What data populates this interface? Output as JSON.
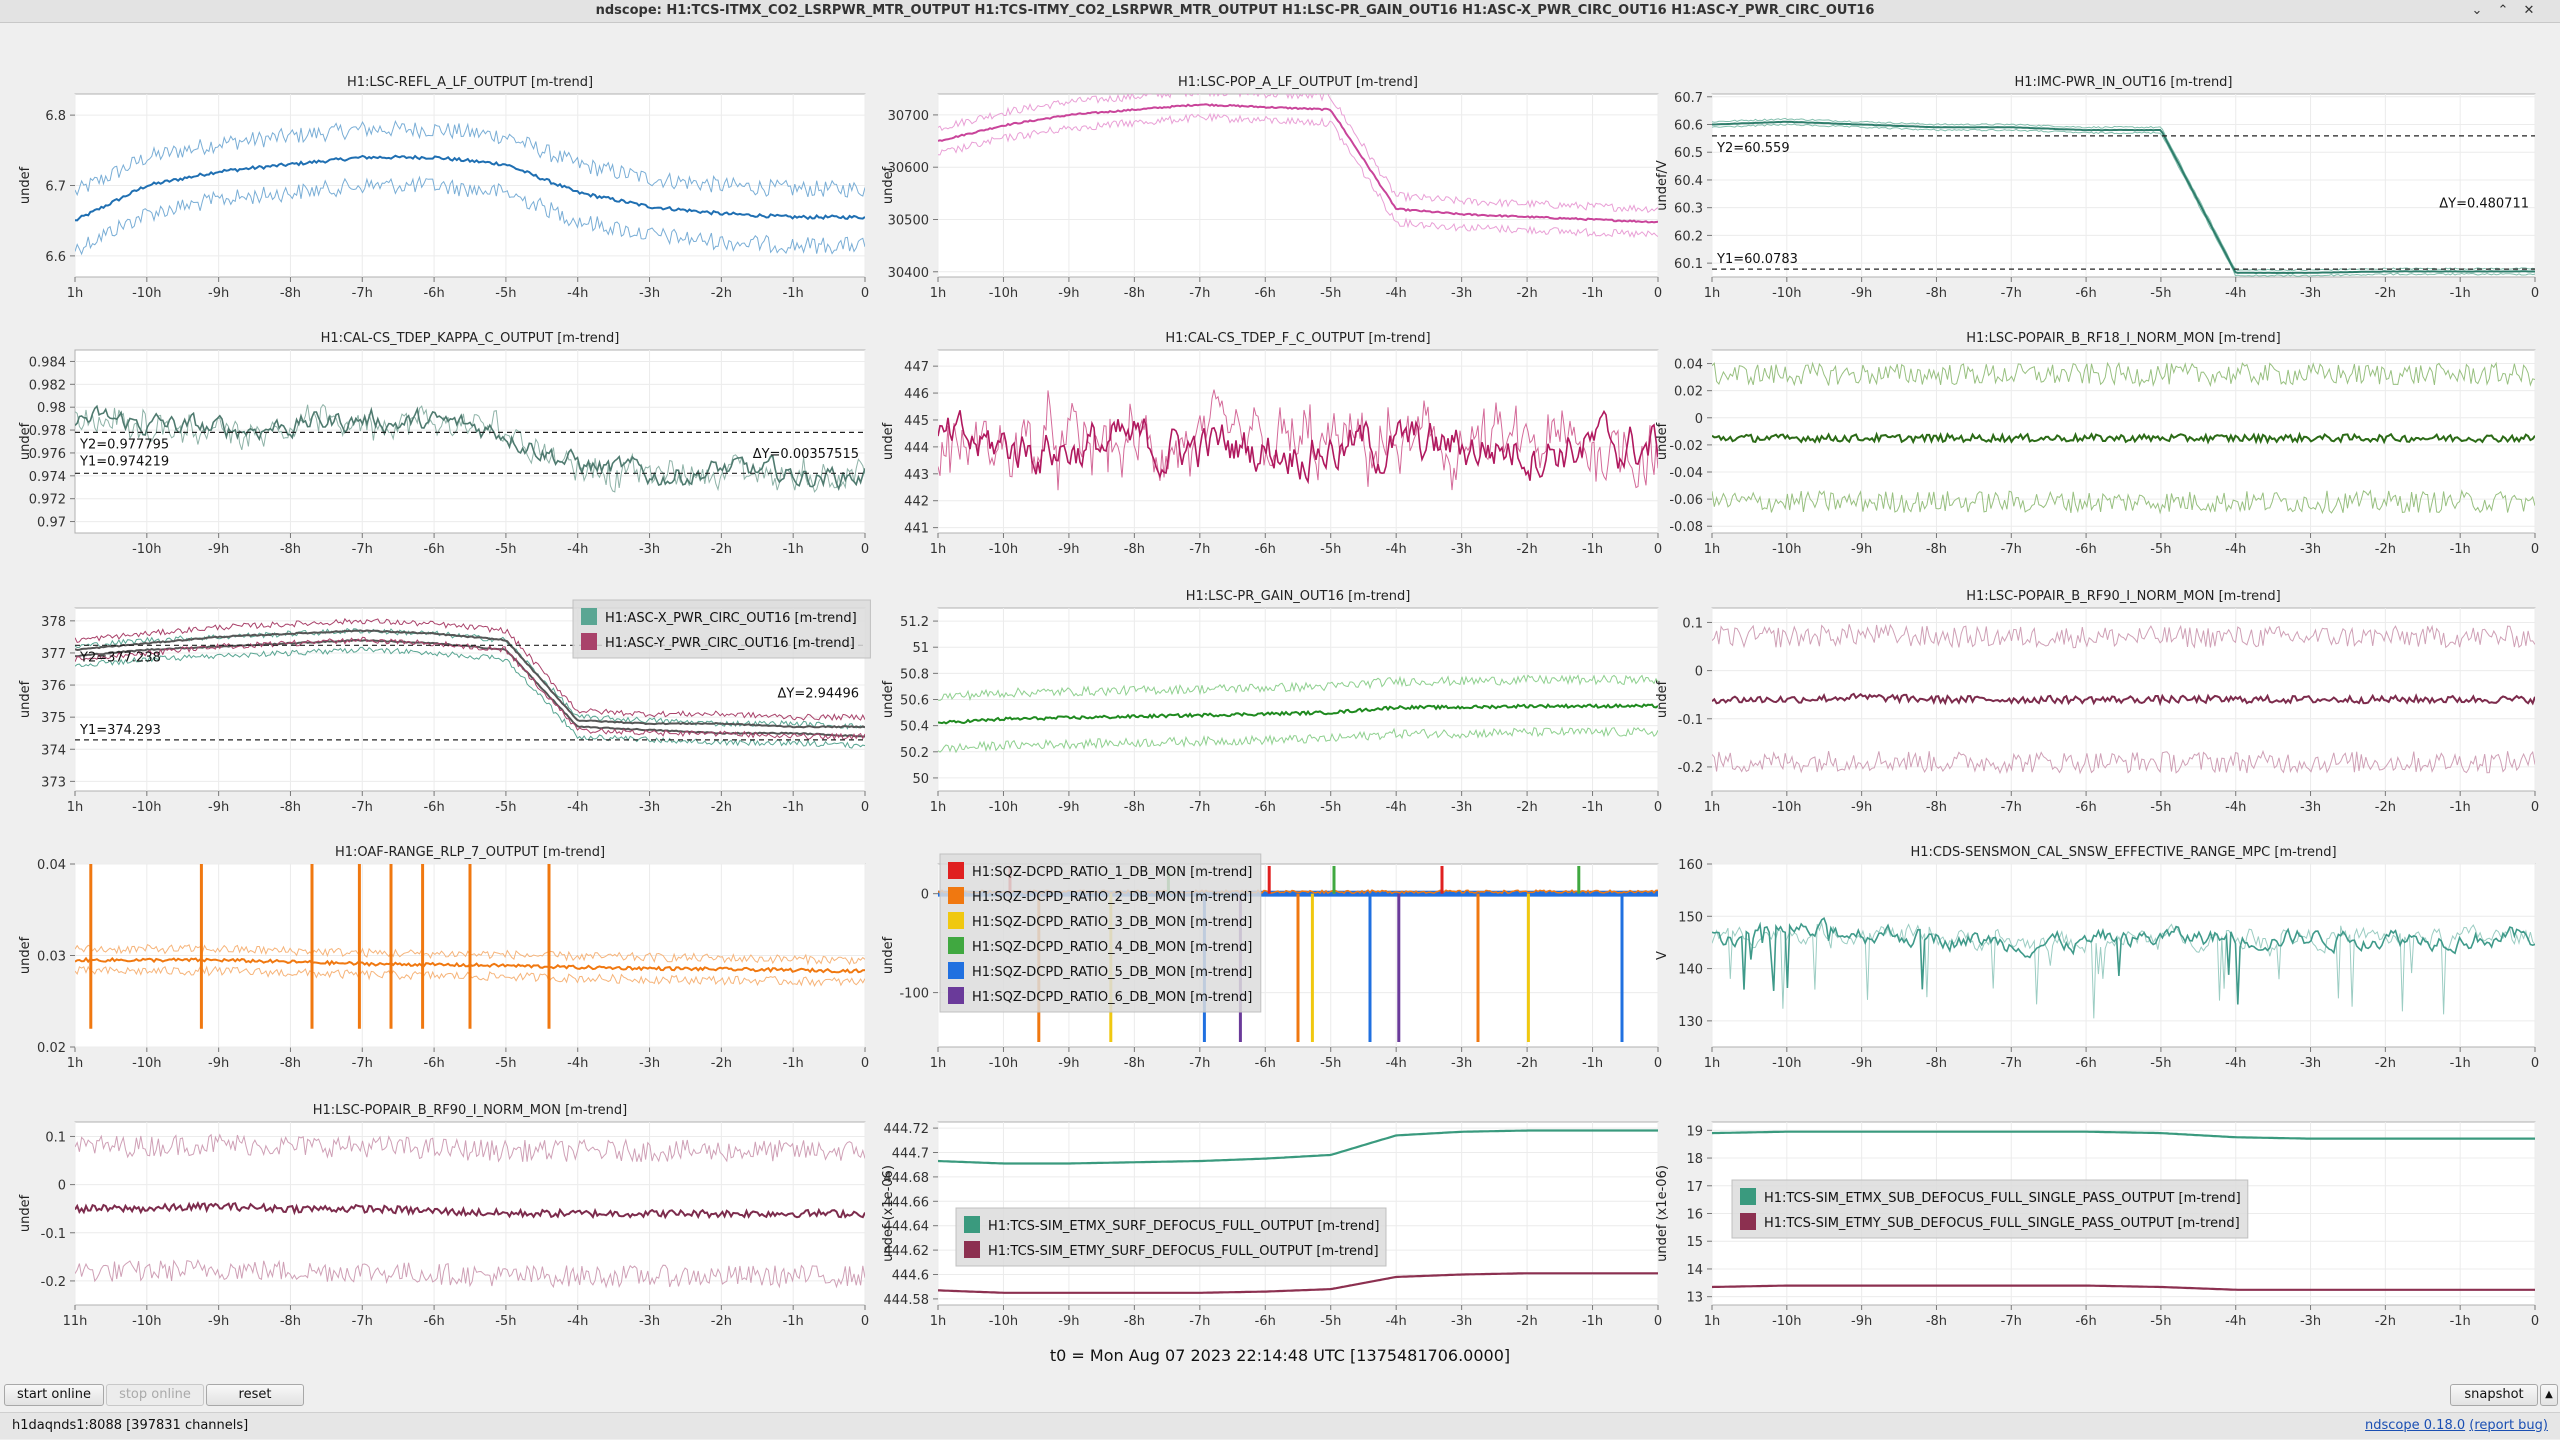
{
  "window": {
    "title": "ndscope: H1:TCS-ITMX_CO2_LSRPWR_MTR_OUTPUT H1:TCS-ITMY_CO2_LSRPWR_MTR_OUTPUT H1:LSC-PR_GAIN_OUT16 H1:ASC-X_PWR_CIRC_OUT16 H1:ASC-Y_PWR_CIRC_OUT16",
    "controls": {
      "shade": "⌄",
      "maximize": "⌃",
      "close": "✕"
    }
  },
  "t0_text": "t0 = Mon Aug 07 2023 22:14:48 UTC [1375481706.0000]",
  "buttons": {
    "start_online": "start online",
    "stop_online": "stop online",
    "reset": "reset",
    "snapshot": "snapshot",
    "collapse": "▲"
  },
  "status": {
    "server": "h1daqnds1:8088  [397831 channels]",
    "version": "ndscope 0.18.0",
    "report": "(report bug)"
  },
  "plots": [
    {
      "title": "H1:LSC-REFL_A_LF_OUTPUT [m-trend]",
      "ylabel": "undef",
      "yticks": [
        "6.8",
        "6.7",
        "6.6"
      ],
      "xticks": [
        "1h",
        "-10h",
        "-9h",
        "-8h",
        "-7h",
        "-6h",
        "-5h",
        "-4h",
        "-3h",
        "-2h",
        "-1h",
        "0"
      ],
      "colors": [
        "#1f6fb2",
        "#7aaed6"
      ],
      "annotations": [],
      "legend": [],
      "chart_data": {
        "type": "line",
        "ylim": [
          6.57,
          6.83
        ],
        "series": [
          {
            "kind": "band",
            "center": [
              6.65,
              6.7,
              6.72,
              6.73,
              6.74,
              6.74,
              6.73,
              6.69,
              6.67,
              6.66,
              6.655,
              6.655
            ],
            "spread": 0.04
          }
        ]
      }
    },
    {
      "title": "H1:LSC-POP_A_LF_OUTPUT [m-trend]",
      "ylabel": "undef",
      "yticks": [
        "30700",
        "30600",
        "30500",
        "30400"
      ],
      "xticks": [
        "1h",
        "-10h",
        "-9h",
        "-8h",
        "-7h",
        "-6h",
        "-5h",
        "-4h",
        "-3h",
        "-2h",
        "-1h",
        "0"
      ],
      "colors": [
        "#c9449a",
        "#e9a0d6"
      ],
      "annotations": [],
      "legend": [],
      "chart_data": {
        "type": "line",
        "ylim": [
          30390,
          30740
        ],
        "series": [
          {
            "kind": "band",
            "center": [
              30650,
              30680,
              30700,
              30710,
              30720,
              30715,
              30710,
              30520,
              30510,
              30505,
              30500,
              30495
            ],
            "spread": 25
          }
        ]
      }
    },
    {
      "title": "H1:IMC-PWR_IN_OUT16 [m-trend]",
      "ylabel": "undef/V",
      "yticks": [
        "60.7",
        "60.6",
        "60.5",
        "60.4",
        "60.3",
        "60.2",
        "60.1"
      ],
      "xticks": [
        "1h",
        "-10h",
        "-9h",
        "-8h",
        "-7h",
        "-6h",
        "-5h",
        "-4h",
        "-3h",
        "-2h",
        "-1h",
        "0"
      ],
      "colors": [
        "#2e7d6b",
        "#84bfae"
      ],
      "annotations": [
        {
          "text": "Y2=60.559",
          "pos": "upper-left"
        },
        {
          "text": "ΔY=0.480711",
          "pos": "right-mid"
        },
        {
          "text": "Y1=60.0783",
          "pos": "lower-left"
        }
      ],
      "cursors": [
        60.559,
        60.0783
      ],
      "legend": [],
      "chart_data": {
        "type": "line",
        "ylim": [
          60.05,
          60.71
        ],
        "series": [
          {
            "kind": "band",
            "center": [
              60.6,
              60.61,
              60.6,
              60.59,
              60.59,
              60.58,
              60.58,
              60.065,
              60.065,
              60.07,
              60.07,
              60.07
            ],
            "spread": 0.01
          }
        ]
      }
    },
    {
      "title": "H1:CAL-CS_TDEP_KAPPA_C_OUTPUT [m-trend]",
      "ylabel": "undef",
      "yticks": [
        "0.984",
        "0.982",
        "0.98",
        "0.978",
        "0.976",
        "0.974",
        "0.972",
        "0.97"
      ],
      "xticks": [
        "-10h",
        "-9h",
        "-8h",
        "-7h",
        "-6h",
        "-5h",
        "-4h",
        "-3h",
        "-2h",
        "-1h",
        "0"
      ],
      "colors": [
        "#4f7a6f",
        "#8fb3a8"
      ],
      "annotations": [
        {
          "text": "Y2=0.977795",
          "pos": "upper-left"
        },
        {
          "text": "Y1=0.974219",
          "pos": "upper-left-2"
        },
        {
          "text": "ΔY=0.00357515",
          "pos": "right-mid"
        }
      ],
      "cursors": [
        0.977795,
        0.974219
      ],
      "legend": [],
      "chart_data": {
        "type": "line",
        "ylim": [
          0.969,
          0.985
        ],
        "series": [
          {
            "kind": "noisy",
            "center": [
              0.979,
              0.9785,
              0.978,
              0.9785,
              0.979,
              0.9785,
              0.978,
              0.975,
              0.974,
              0.9745,
              0.974,
              0.974
            ],
            "spread": 0.0018
          }
        ]
      }
    },
    {
      "title": "H1:CAL-CS_TDEP_F_C_OUTPUT [m-trend]",
      "ylabel": "undef",
      "yticks": [
        "447",
        "446",
        "445",
        "444",
        "443",
        "442",
        "441"
      ],
      "xticks": [
        "1h",
        "-10h",
        "-9h",
        "-8h",
        "-7h",
        "-6h",
        "-5h",
        "-4h",
        "-3h",
        "-2h",
        "-1h",
        "0"
      ],
      "colors": [
        "#b0195f",
        "#d46a99"
      ],
      "annotations": [],
      "legend": [],
      "chart_data": {
        "type": "line",
        "ylim": [
          440.8,
          447.6
        ],
        "series": [
          {
            "kind": "noisy",
            "center": [
              444,
              444,
              444,
              444,
              444,
              444,
              444,
              444,
              444,
              444,
              444,
              444
            ],
            "spread": 1.6
          }
        ]
      }
    },
    {
      "title": "H1:LSC-POPAIR_B_RF18_I_NORM_MON [m-trend]",
      "ylabel": "undef",
      "yticks": [
        "0.04",
        "0.02",
        "0",
        "-0.02",
        "-0.04",
        "-0.06",
        "-0.08"
      ],
      "xticks": [
        "1h",
        "-10h",
        "-9h",
        "-8h",
        "-7h",
        "-6h",
        "-5h",
        "-4h",
        "-3h",
        "-2h",
        "-1h",
        "0"
      ],
      "colors": [
        "#2b6a16",
        "#98c080"
      ],
      "annotations": [],
      "legend": [],
      "chart_data": {
        "type": "line",
        "ylim": [
          -0.085,
          0.05
        ],
        "series": [
          {
            "kind": "env",
            "center": [
              -0.015,
              -0.015,
              -0.015,
              -0.015,
              -0.015,
              -0.015,
              -0.015,
              -0.015,
              -0.015,
              -0.015,
              -0.015,
              -0.015
            ],
            "spread": 0.047
          }
        ]
      }
    },
    {
      "title": "",
      "ylabel": "undef",
      "yticks": [
        "378",
        "377",
        "376",
        "375",
        "374",
        "373"
      ],
      "xticks": [
        "1h",
        "-10h",
        "-9h",
        "-8h",
        "-7h",
        "-6h",
        "-5h",
        "-4h",
        "-3h",
        "-2h",
        "-1h",
        "0"
      ],
      "colors": [
        "#5aa693",
        "#a9426a"
      ],
      "annotations": [
        {
          "text": "Y2=377.238",
          "pos": "upper-left"
        },
        {
          "text": "ΔY=2.94496",
          "pos": "right-mid"
        },
        {
          "text": "Y1=374.293",
          "pos": "lower-left"
        }
      ],
      "cursors": [
        377.238,
        374.293
      ],
      "legend": [
        {
          "label": "H1:ASC-X_PWR_CIRC_OUT16 [m-trend]",
          "color": "#5aa693"
        },
        {
          "label": "H1:ASC-Y_PWR_CIRC_OUT16 [m-trend]",
          "color": "#a9426a"
        }
      ],
      "chart_data": {
        "type": "line",
        "ylim": [
          372.7,
          378.4
        ],
        "series": [
          {
            "kind": "band",
            "center": [
              376.9,
              377.1,
              377.2,
              377.3,
              377.4,
              377.3,
              377.1,
              374.7,
              374.6,
              374.5,
              374.5,
              374.4
            ],
            "spread": 0.3
          },
          {
            "kind": "band",
            "center": [
              377.1,
              377.3,
              377.5,
              377.6,
              377.7,
              377.6,
              377.4,
              374.9,
              374.8,
              374.8,
              374.7,
              374.7
            ],
            "spread": 0.3
          }
        ]
      }
    },
    {
      "title": "H1:LSC-PR_GAIN_OUT16 [m-trend]",
      "ylabel": "undef",
      "yticks": [
        "51.2",
        "51",
        "50.8",
        "50.6",
        "50.4",
        "50.2",
        "50"
      ],
      "xticks": [
        "1h",
        "-10h",
        "-9h",
        "-8h",
        "-7h",
        "-6h",
        "-5h",
        "-4h",
        "-3h",
        "-2h",
        "-1h",
        "0"
      ],
      "colors": [
        "#1f8a1f",
        "#8fd08f"
      ],
      "annotations": [],
      "legend": [],
      "chart_data": {
        "type": "line",
        "ylim": [
          49.9,
          51.3
        ],
        "series": [
          {
            "kind": "env",
            "center": [
              50.42,
              50.45,
              50.46,
              50.47,
              50.48,
              50.49,
              50.5,
              50.54,
              50.54,
              50.55,
              50.55,
              50.55
            ],
            "spread": 0.2
          }
        ]
      }
    },
    {
      "title": "H1:LSC-POPAIR_B_RF90_I_NORM_MON [m-trend]",
      "ylabel": "undef",
      "yticks": [
        "0.1",
        "0",
        "-0.1",
        "-0.2"
      ],
      "xticks": [
        "1h",
        "-10h",
        "-9h",
        "-8h",
        "-7h",
        "-6h",
        "-5h",
        "-4h",
        "-3h",
        "-2h",
        "-1h",
        "0"
      ],
      "colors": [
        "#7c2b4c",
        "#cfa0b6"
      ],
      "annotations": [],
      "legend": [],
      "chart_data": {
        "type": "line",
        "ylim": [
          -0.25,
          0.13
        ],
        "series": [
          {
            "kind": "env",
            "center": [
              -0.06,
              -0.06,
              -0.055,
              -0.06,
              -0.06,
              -0.06,
              -0.06,
              -0.06,
              -0.06,
              -0.06,
              -0.06,
              -0.06
            ],
            "spread": 0.13
          }
        ]
      }
    },
    {
      "title": "H1:OAF-RANGE_RLP_7_OUTPUT [m-trend]",
      "ylabel": "undef",
      "yticks": [
        "0.04",
        "0.03",
        "0.02"
      ],
      "xticks": [
        "1h",
        "-10h",
        "-9h",
        "-8h",
        "-7h",
        "-6h",
        "-5h",
        "-4h",
        "-3h",
        "-2h",
        "-1h",
        "0"
      ],
      "colors": [
        "#f07810",
        "#f6b47a"
      ],
      "annotations": [],
      "legend": [],
      "chart_data": {
        "type": "line",
        "ylim": [
          0.02,
          0.04
        ],
        "series": [
          {
            "kind": "spiky",
            "center": [
              0.0295,
              0.0295,
              0.0295,
              0.0293,
              0.0291,
              0.029,
              0.0289,
              0.0287,
              0.0286,
              0.0285,
              0.0284,
              0.0283
            ],
            "spread": 0.0012
          }
        ]
      }
    },
    {
      "title": "",
      "ylabel": "undef",
      "yticks": [
        "0",
        "-100"
      ],
      "xticks": [
        "1h",
        "-10h",
        "-9h",
        "-8h",
        "-7h",
        "-6h",
        "-5h",
        "-4h",
        "-3h",
        "-2h",
        "-1h",
        "0"
      ],
      "colors": [
        "#e02020",
        "#f07810",
        "#f0c810",
        "#40a840",
        "#2070e0",
        "#6a3a9a"
      ],
      "annotations": [],
      "legend": [
        {
          "label": "H1:SQZ-DCPD_RATIO_1_DB_MON [m-trend]",
          "color": "#e02020"
        },
        {
          "label": "H1:SQZ-DCPD_RATIO_2_DB_MON [m-trend]",
          "color": "#f07810"
        },
        {
          "label": "H1:SQZ-DCPD_RATIO_3_DB_MON [m-trend]",
          "color": "#f0c810"
        },
        {
          "label": "H1:SQZ-DCPD_RATIO_4_DB_MON [m-trend]",
          "color": "#40a840"
        },
        {
          "label": "H1:SQZ-DCPD_RATIO_5_DB_MON [m-trend]",
          "color": "#2070e0"
        },
        {
          "label": "H1:SQZ-DCPD_RATIO_6_DB_MON [m-trend]",
          "color": "#6a3a9a"
        }
      ],
      "chart_data": {
        "type": "line",
        "ylim": [
          -155,
          30
        ],
        "series": [
          {
            "kind": "dbspikes",
            "center": [
              0,
              0,
              0,
              0,
              0,
              0,
              0,
              0,
              0,
              0,
              0,
              0
            ],
            "spread": 2
          }
        ]
      }
    },
    {
      "title": "H1:CDS-SENSMON_CAL_SNSW_EFFECTIVE_RANGE_MPC [m-trend]",
      "ylabel": "V",
      "yticks": [
        "160",
        "150",
        "140",
        "130"
      ],
      "xticks": [
        "1h",
        "-10h",
        "-9h",
        "-8h",
        "-7h",
        "-6h",
        "-5h",
        "-4h",
        "-3h",
        "-2h",
        "-1h",
        "0"
      ],
      "colors": [
        "#3f9a8a",
        "#9ccdc3"
      ],
      "annotations": [],
      "legend": [],
      "chart_data": {
        "type": "line",
        "ylim": [
          125,
          160
        ],
        "series": [
          {
            "kind": "dips",
            "center": [
              146,
              147,
              147,
              146,
              145,
              145,
              146,
              146,
              146,
              146,
              146,
              146
            ],
            "spread": 3
          }
        ]
      }
    },
    {
      "title": "H1:LSC-POPAIR_B_RF90_I_NORM_MON [m-trend]",
      "ylabel": "undef",
      "yticks": [
        "0.1",
        "0",
        "-0.1",
        "-0.2"
      ],
      "xticks": [
        "11h",
        "-10h",
        "-9h",
        "-8h",
        "-7h",
        "-6h",
        "-5h",
        "-4h",
        "-3h",
        "-2h",
        "-1h",
        "0"
      ],
      "colors": [
        "#7c2b4c",
        "#cfa0b6"
      ],
      "annotations": [],
      "legend": [],
      "chart_data": {
        "type": "line",
        "ylim": [
          -0.25,
          0.13
        ],
        "series": [
          {
            "kind": "env",
            "center": [
              -0.05,
              -0.05,
              -0.045,
              -0.05,
              -0.05,
              -0.055,
              -0.06,
              -0.06,
              -0.06,
              -0.06,
              -0.06,
              -0.06
            ],
            "spread": 0.13
          }
        ]
      }
    },
    {
      "title": "",
      "ylabel": "undef (x1e-06)",
      "yticks": [
        "444.72",
        "444.7",
        "444.68",
        "444.66",
        "444.64",
        "444.62",
        "444.6",
        "444.58"
      ],
      "xticks": [
        "1h",
        "-10h",
        "-9h",
        "-8h",
        "-7h",
        "-6h",
        "-5h",
        "-4h",
        "-3h",
        "-2h",
        "-1h",
        "0"
      ],
      "colors": [
        "#3a9a7e",
        "#8c3050"
      ],
      "annotations": [],
      "legend": [
        {
          "label": "H1:TCS-SIM_ETMX_SURF_DEFOCUS_FULL_OUTPUT [m-trend]",
          "color": "#3a9a7e"
        },
        {
          "label": "H1:TCS-SIM_ETMY_SURF_DEFOCUS_FULL_OUTPUT [m-trend]",
          "color": "#8c3050"
        }
      ],
      "chart_data": {
        "type": "line",
        "ylim": [
          444.575,
          444.725
        ],
        "series": [
          {
            "kind": "smooth",
            "center": [
              444.693,
              444.691,
              444.691,
              444.692,
              444.693,
              444.695,
              444.698,
              444.714,
              444.717,
              444.718,
              444.718,
              444.718
            ],
            "spread": 0
          },
          {
            "kind": "smooth",
            "center": [
              444.587,
              444.585,
              444.585,
              444.585,
              444.585,
              444.586,
              444.588,
              444.598,
              444.6,
              444.601,
              444.601,
              444.601
            ],
            "spread": 0
          }
        ]
      }
    },
    {
      "title": "",
      "ylabel": "undef (x1e-06)",
      "yticks": [
        "19",
        "18",
        "17",
        "16",
        "15",
        "14",
        "13"
      ],
      "xticks": [
        "1h",
        "-10h",
        "-9h",
        "-8h",
        "-7h",
        "-6h",
        "-5h",
        "-4h",
        "-3h",
        "-2h",
        "-1h",
        "0"
      ],
      "colors": [
        "#3a9a7e",
        "#8c3050"
      ],
      "annotations": [],
      "legend": [
        {
          "label": "H1:TCS-SIM_ETMX_SUB_DEFOCUS_FULL_SINGLE_PASS_OUTPUT [m-trend]",
          "color": "#3a9a7e"
        },
        {
          "label": "H1:TCS-SIM_ETMY_SUB_DEFOCUS_FULL_SINGLE_PASS_OUTPUT [m-trend]",
          "color": "#8c3050"
        }
      ],
      "chart_data": {
        "type": "line",
        "ylim": [
          12.7,
          19.3
        ],
        "series": [
          {
            "kind": "smooth",
            "center": [
              18.9,
              18.95,
              18.95,
              18.95,
              18.95,
              18.95,
              18.9,
              18.75,
              18.7,
              18.7,
              18.7,
              18.7
            ],
            "spread": 0
          },
          {
            "kind": "smooth",
            "center": [
              13.35,
              13.4,
              13.4,
              13.4,
              13.4,
              13.4,
              13.35,
              13.25,
              13.25,
              13.25,
              13.25,
              13.25
            ],
            "spread": 0
          }
        ]
      }
    }
  ]
}
